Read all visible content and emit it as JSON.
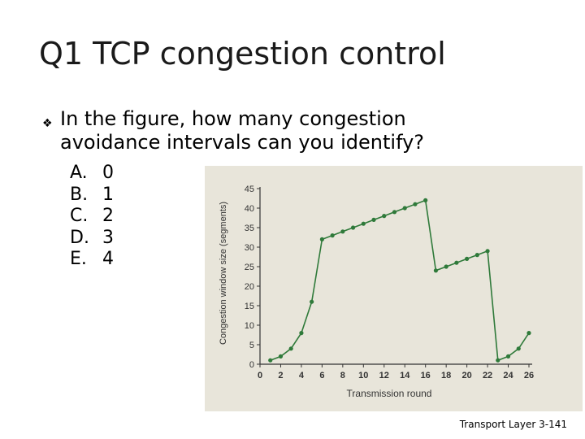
{
  "title": "Q1 TCP congestion control",
  "question": {
    "bullet_icon": "diamond-bullet-icon",
    "text": "In the figure, how many congestion avoidance intervals can you identify?"
  },
  "answers": [
    {
      "letter": "A.",
      "value": "0"
    },
    {
      "letter": "B.",
      "value": "1"
    },
    {
      "letter": "C.",
      "value": "2"
    },
    {
      "letter": "D.",
      "value": "3"
    },
    {
      "letter": "E.",
      "value": "4"
    }
  ],
  "footer": "Transport Layer 3-141",
  "colors": {
    "series": "#2f7a3a",
    "axis": "#333333",
    "paper": "#e8e5da"
  },
  "chart_data": {
    "type": "line",
    "xlabel": "Transmission round",
    "ylabel": "Congestion window size (segments)",
    "xlim": [
      0,
      26
    ],
    "ylim": [
      0,
      45
    ],
    "x_ticks": [
      "0",
      "2",
      "4",
      "6",
      "8",
      "10",
      "12",
      "14",
      "16",
      "18",
      "20",
      "22",
      "24",
      "26"
    ],
    "y_ticks": [
      "0",
      "5",
      "10",
      "15",
      "20",
      "25",
      "30",
      "35",
      "40",
      "45"
    ],
    "series": [
      {
        "x": [
          1,
          2,
          3,
          4,
          5,
          6,
          7,
          8,
          9,
          10,
          11,
          12,
          13,
          14,
          15,
          16,
          17,
          18,
          19,
          20,
          21,
          22,
          23,
          24,
          25,
          26
        ],
        "y": [
          1,
          2,
          4,
          8,
          16,
          32,
          33,
          34,
          35,
          36,
          37,
          38,
          39,
          40,
          41,
          42,
          24,
          25,
          26,
          27,
          28,
          29,
          1,
          2,
          4,
          8
        ]
      }
    ]
  }
}
